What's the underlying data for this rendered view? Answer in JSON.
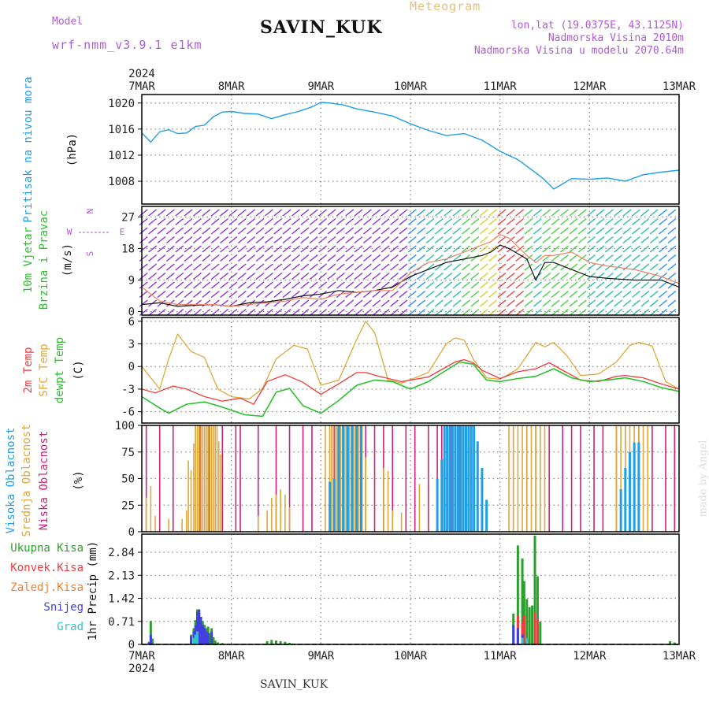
{
  "header": {
    "model_label": "Model",
    "model_name": "wrf-nmm_v3.9.1 e1km",
    "station": "SAVIN_KUK",
    "title": "Meteogram",
    "lonlat": "lon,lat (19.0375E, 43.1125N)",
    "elevation": "Nadmorska Visina 2010m",
    "model_elevation": "Nadmorska Visina u modelu 2070.64m",
    "footer_station": "SAVIN_KUK",
    "credit": "made by Angel"
  },
  "colors": {
    "pressure": "#1e9fe8",
    "temp2m": "#f03c3c",
    "sfc": "#e0a93a",
    "dewpt": "#2cc02c",
    "high_cloud": "#1e9fe8",
    "mid_cloud": "#e0a93a",
    "low_cloud": "#d0207a",
    "wind_label": "#2cc02c",
    "direction": "#b05ad6",
    "total_precip": "#2ca02c",
    "conv_precip": "#f03c3c",
    "frz_precip": "#f08030",
    "snow": "#4040e0",
    "hail": "#2cc8c8"
  },
  "chart_data": [
    {
      "type": "line",
      "panel": "pressure",
      "title": "Pritisak na nivou mora",
      "ylabel": "(hPa)",
      "year": "2024",
      "x_ticks": [
        "7MAR",
        "8MAR",
        "9MAR",
        "10MAR",
        "11MAR",
        "12MAR",
        "13MAR"
      ],
      "x_range_days": [
        7,
        13
      ],
      "ylim": [
        1004.5,
        1021.3
      ],
      "y_ticks": [
        1008,
        1012,
        1016,
        1020
      ],
      "grid": true,
      "series": [
        {
          "x": [
            7.0,
            7.1,
            7.2,
            7.3,
            7.4,
            7.5,
            7.6,
            7.7,
            7.8,
            7.9,
            8.0,
            8.15,
            8.3,
            8.45,
            8.6,
            8.75,
            8.9,
            9.0,
            9.1,
            9.25,
            9.4,
            9.6,
            9.8,
            10.0,
            10.2,
            10.4,
            10.6,
            10.8,
            11.0,
            11.2,
            11.4,
            11.5,
            11.6,
            11.7,
            11.8,
            12.0,
            12.2,
            12.4,
            12.6,
            12.8,
            13.0
          ],
          "values": [
            1015.4,
            1014.0,
            1015.6,
            1015.9,
            1015.3,
            1015.4,
            1016.4,
            1016.6,
            1017.9,
            1018.6,
            1018.7,
            1018.4,
            1018.3,
            1017.6,
            1018.2,
            1018.7,
            1019.4,
            1020.1,
            1020.0,
            1019.7,
            1019.1,
            1018.6,
            1018.0,
            1016.8,
            1015.8,
            1015.0,
            1015.3,
            1014.3,
            1012.6,
            1011.3,
            1009.3,
            1008.2,
            1006.8,
            1007.6,
            1008.4,
            1008.3,
            1008.5,
            1008.0,
            1009.0,
            1009.4,
            1009.7
          ]
        }
      ]
    },
    {
      "type": "line",
      "panel": "wind",
      "title": "10m Vjetar Brzina i Pravac",
      "ylabel": "(m/s)",
      "direction_key": [
        "N",
        "W",
        "E",
        "S"
      ],
      "x_range_days": [
        7,
        13
      ],
      "ylim": [
        -1,
        30
      ],
      "y_ticks": [
        0,
        9,
        18,
        27
      ],
      "grid": true,
      "series": [
        {
          "x": [
            7.0,
            7.2,
            7.4,
            7.6,
            7.8,
            8.0,
            8.2,
            8.4,
            8.6,
            8.8,
            9.0,
            9.2,
            9.4,
            9.6,
            9.8,
            10.0,
            10.2,
            10.4,
            10.6,
            10.8,
            10.9,
            11.0,
            11.1,
            11.3,
            11.4,
            11.5,
            11.6,
            11.8,
            12.0,
            12.2,
            12.5,
            12.8,
            13.0
          ],
          "values": [
            2,
            2.5,
            1.5,
            1.8,
            2,
            1.5,
            2.5,
            2.8,
            3.5,
            4.5,
            5,
            6,
            5.5,
            6,
            7,
            10,
            12,
            14,
            15,
            16,
            17,
            19,
            18,
            15,
            9,
            14,
            14,
            12,
            10,
            9.5,
            9,
            9,
            7
          ]
        },
        {
          "x": [
            7.0,
            7.1,
            7.2,
            7.4,
            7.6,
            7.8,
            8.0,
            8.2,
            8.4,
            8.6,
            8.8,
            9.0,
            9.2,
            9.4,
            9.6,
            9.8,
            10.0,
            10.2,
            10.4,
            10.6,
            10.8,
            10.9,
            11.0,
            11.1,
            11.3,
            11.4,
            11.5,
            11.6,
            11.8,
            12.0,
            12.2,
            12.5,
            12.8,
            13.0
          ],
          "values": [
            7,
            5,
            3,
            2,
            2,
            2,
            1.5,
            2,
            2.5,
            3,
            4,
            3.5,
            5,
            5.5,
            6,
            6,
            11,
            14,
            15,
            17,
            19,
            20,
            22,
            21,
            16,
            14,
            16,
            16,
            17,
            14,
            13,
            12,
            10,
            8
          ]
        }
      ]
    },
    {
      "type": "line",
      "panel": "temperature",
      "title": "2m Temp / SFC Temp / dewpt Temp",
      "ylabel": "(C)",
      "series_labels": [
        "2m Temp",
        "SFC Temp",
        "dewpt Temp"
      ],
      "x_range_days": [
        7,
        13
      ],
      "ylim": [
        -7.5,
        6.5
      ],
      "y_ticks": [
        -6,
        -3,
        0,
        3,
        6
      ],
      "grid": true,
      "series": [
        {
          "x": [
            7.0,
            7.15,
            7.35,
            7.5,
            7.7,
            7.9,
            8.1,
            8.25,
            8.4,
            8.6,
            8.8,
            9.0,
            9.2,
            9.4,
            9.5,
            9.65,
            9.9,
            10.2,
            10.35,
            10.5,
            10.6,
            10.7,
            10.8,
            11.0,
            11.2,
            11.4,
            11.55,
            11.7,
            11.9,
            12.1,
            12.3,
            12.4,
            12.6,
            12.8,
            13.0
          ],
          "values": [
            -3,
            -3.5,
            -2.6,
            -3,
            -4,
            -4.6,
            -4.2,
            -5,
            -2,
            -1.1,
            -2.1,
            -3.7,
            -2.3,
            -0.8,
            -0.8,
            -1.3,
            -2,
            -1.4,
            -0.4,
            0.6,
            0.9,
            0.5,
            -0.5,
            -1.6,
            -0.7,
            -0.3,
            0.5,
            -0.5,
            -1.8,
            -2.0,
            -1.3,
            -1.2,
            -1.5,
            -2.3,
            -3.0
          ]
        },
        {
          "x": [
            7.0,
            7.2,
            7.3,
            7.4,
            7.55,
            7.7,
            7.85,
            8.0,
            8.2,
            8.35,
            8.5,
            8.7,
            8.85,
            9.0,
            9.2,
            9.4,
            9.5,
            9.6,
            9.75,
            9.9,
            10.2,
            10.4,
            10.5,
            10.6,
            10.7,
            10.85,
            11.0,
            11.2,
            11.4,
            11.5,
            11.6,
            11.75,
            11.9,
            12.1,
            12.3,
            12.45,
            12.55,
            12.7,
            12.85,
            13.0
          ],
          "values": [
            0,
            -3,
            1,
            4.3,
            2,
            1.2,
            -3,
            -4,
            -4.3,
            -2.9,
            1,
            2.8,
            2.3,
            -2.5,
            -1.8,
            3.6,
            6,
            4.5,
            -1.8,
            -2.2,
            -0.8,
            3,
            3.8,
            3.5,
            1,
            -1.5,
            -1.7,
            -0.3,
            3.2,
            2.6,
            3.2,
            1.4,
            -1.2,
            -1.0,
            0.6,
            2.8,
            3.2,
            2.7,
            -2,
            -3
          ]
        },
        {
          "x": [
            7.0,
            7.2,
            7.3,
            7.5,
            7.7,
            7.85,
            8.0,
            8.15,
            8.35,
            8.5,
            8.65,
            8.8,
            9.0,
            9.2,
            9.4,
            9.6,
            9.8,
            10.0,
            10.2,
            10.4,
            10.55,
            10.7,
            10.85,
            11.0,
            11.2,
            11.4,
            11.6,
            11.8,
            12.0,
            12.2,
            12.4,
            12.6,
            12.8,
            13.0
          ],
          "values": [
            -4,
            -5.5,
            -6.2,
            -5,
            -4.7,
            -5.2,
            -5.8,
            -6.4,
            -6.6,
            -3.4,
            -2.9,
            -5.2,
            -6.2,
            -4.5,
            -2.5,
            -1.8,
            -2.0,
            -3.0,
            -2.0,
            -0.5,
            0.6,
            0.3,
            -1.8,
            -2.0,
            -1.6,
            -1.3,
            -0.3,
            -1.5,
            -2.0,
            -1.8,
            -1.5,
            -2.0,
            -2.8,
            -3.3
          ]
        }
      ]
    },
    {
      "type": "bar",
      "panel": "cloud_cover",
      "title": "Visoka Oblacnost / Srednja Oblacnost / Niska Oblacnost",
      "ylabel": "(%)",
      "series_labels": [
        "Visoka Oblacnost",
        "Srednja Oblacnost",
        "Niska Oblacnost"
      ],
      "x_range_days": [
        7,
        13
      ],
      "ylim": [
        0,
        100
      ],
      "y_ticks": [
        0,
        25,
        50,
        75,
        100
      ],
      "grid": true,
      "series": [
        {
          "name": "low",
          "x": [
            7.05,
            7.2,
            7.35,
            7.6,
            7.65,
            7.75,
            7.9,
            8.05,
            8.1,
            8.3,
            8.5,
            8.65,
            8.8,
            8.9,
            9.1,
            9.15,
            9.2,
            9.25,
            9.3,
            9.35,
            9.4,
            9.45,
            9.5,
            9.6,
            9.7,
            9.8,
            9.95,
            10.05,
            10.2,
            10.3,
            10.35,
            10.45,
            10.55,
            11.15,
            11.3,
            11.4,
            11.55,
            11.7,
            11.8,
            11.9,
            12.05,
            12.15,
            12.3,
            12.4,
            12.55,
            12.7,
            12.85,
            12.95
          ],
          "values": [
            100,
            100,
            100,
            100,
            100,
            100,
            100,
            100,
            100,
            100,
            100,
            100,
            100,
            100,
            100,
            100,
            100,
            100,
            100,
            100,
            100,
            100,
            100,
            100,
            100,
            100,
            100,
            100,
            100,
            100,
            100,
            100,
            100,
            100,
            100,
            100,
            100,
            100,
            100,
            100,
            100,
            100,
            100,
            100,
            100,
            100,
            100,
            100
          ]
        },
        {
          "name": "mid",
          "x": [
            7.05,
            7.1,
            7.15,
            7.3,
            7.45,
            7.5,
            7.52,
            7.55,
            7.58,
            7.6,
            7.62,
            7.64,
            7.66,
            7.68,
            7.7,
            7.72,
            7.74,
            7.76,
            7.78,
            7.8,
            7.82,
            7.84,
            7.86,
            7.88,
            8.3,
            8.4,
            8.45,
            8.5,
            8.55,
            8.6,
            8.65,
            9.05,
            9.1,
            9.12,
            9.14,
            9.16,
            9.18,
            9.2,
            9.22,
            9.24,
            9.26,
            9.28,
            9.3,
            9.32,
            9.34,
            9.36,
            9.38,
            9.4,
            9.42,
            9.44,
            9.46,
            9.5,
            9.7,
            9.75,
            9.8,
            9.9,
            10.1,
            11.1,
            11.15,
            11.2,
            11.25,
            11.3,
            11.35,
            11.4,
            11.45,
            11.5,
            12.3,
            12.35,
            12.4,
            12.45,
            12.5,
            12.55,
            12.6,
            12.65
          ],
          "values": [
            32,
            43,
            15,
            12,
            12,
            20,
            67,
            58,
            83,
            100,
            100,
            100,
            100,
            100,
            100,
            100,
            100,
            100,
            100,
            100,
            100,
            100,
            85,
            73,
            15,
            20,
            32,
            35,
            40,
            35,
            23,
            100,
            100,
            100,
            100,
            100,
            100,
            100,
            100,
            100,
            100,
            100,
            100,
            100,
            100,
            100,
            100,
            100,
            100,
            100,
            100,
            70,
            60,
            57,
            20,
            18,
            45,
            100,
            100,
            100,
            100,
            100,
            100,
            100,
            100,
            100,
            100,
            100,
            100,
            100,
            100,
            100,
            100,
            100
          ]
        },
        {
          "name": "high",
          "x": [
            9.1,
            9.15,
            9.2,
            9.25,
            9.3,
            9.35,
            9.4,
            9.45,
            10.3,
            10.35,
            10.38,
            10.41,
            10.44,
            10.47,
            10.5,
            10.53,
            10.56,
            10.59,
            10.62,
            10.65,
            10.68,
            10.71,
            10.75,
            10.8,
            10.85,
            12.35,
            12.4,
            12.45,
            12.5,
            12.55
          ],
          "values": [
            47,
            50,
            100,
            100,
            100,
            100,
            100,
            100,
            50,
            68,
            100,
            100,
            100,
            100,
            100,
            100,
            100,
            100,
            100,
            100,
            100,
            100,
            85,
            60,
            30,
            40,
            60,
            75,
            84,
            84
          ]
        }
      ]
    },
    {
      "type": "bar",
      "panel": "precipitation",
      "title": "1hr Precip",
      "ylabel": "1hr Precip (mm)",
      "series_labels": [
        "Ukupna Kisa",
        "Konvek.Kisa",
        "Zaledj.Kisa",
        "Snijeg",
        "Grad"
      ],
      "x_range_days": [
        7,
        13
      ],
      "ylim": [
        0,
        3.4
      ],
      "y_ticks": [
        0,
        0.71,
        1.42,
        2.13,
        2.84
      ],
      "grid": true,
      "series": [
        {
          "name": "Ukupna Kisa",
          "x": [
            7.08,
            7.1,
            7.12,
            7.55,
            7.58,
            7.6,
            7.62,
            7.64,
            7.66,
            7.68,
            7.7,
            7.72,
            7.74,
            7.76,
            7.78,
            7.8,
            7.82,
            7.85,
            7.9,
            8.4,
            8.45,
            8.5,
            8.55,
            8.6,
            8.65,
            11.15,
            11.2,
            11.25,
            11.27,
            11.3,
            11.33,
            11.36,
            11.39,
            11.42,
            11.45,
            12.9,
            12.95
          ],
          "values": [
            0.08,
            0.72,
            0.18,
            0.3,
            0.5,
            0.75,
            1.08,
            1.0,
            0.85,
            0.72,
            0.6,
            0.5,
            0.55,
            0.35,
            0.5,
            0.22,
            0.12,
            0.06,
            0.04,
            0.1,
            0.14,
            0.12,
            0.1,
            0.08,
            0.05,
            0.95,
            3.05,
            2.65,
            1.95,
            1.4,
            1.15,
            1.2,
            3.35,
            2.1,
            0.7,
            0.1,
            0.06
          ]
        },
        {
          "name": "Konvek.Kisa",
          "x": [
            7.64,
            7.66,
            7.72,
            11.2,
            11.25,
            11.27,
            11.39,
            11.42
          ],
          "values": [
            0.75,
            0.6,
            0.3,
            0.9,
            0.7,
            0.9,
            1.0,
            0.8
          ]
        },
        {
          "name": "Snijeg",
          "x": [
            7.08,
            7.1,
            7.55,
            7.58,
            7.6,
            7.62,
            7.64,
            7.66,
            7.68,
            7.7,
            7.72,
            7.74,
            7.78,
            11.15,
            11.2,
            11.25,
            11.3
          ],
          "values": [
            0.05,
            0.3,
            0.25,
            0.4,
            0.6,
            1.0,
            1.08,
            0.85,
            0.6,
            0.5,
            0.4,
            0.35,
            0.4,
            0.6,
            0.5,
            0.3,
            0.2
          ]
        },
        {
          "name": "Grad",
          "x": [
            7.58,
            7.6,
            7.62,
            11.25,
            11.3
          ],
          "values": [
            0.2,
            0.3,
            0.4,
            0.2,
            0.2
          ]
        }
      ]
    }
  ]
}
